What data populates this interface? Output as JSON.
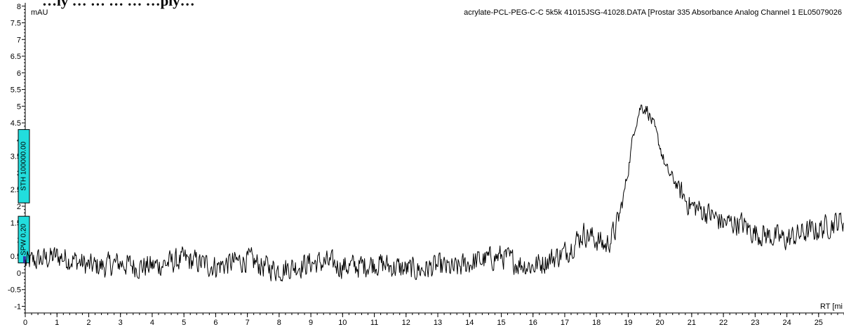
{
  "header": {
    "caption": "…ly … … … … …ply…"
  },
  "chart_data": {
    "type": "line",
    "title": "acrylate-PCL-PEG-C-C 5k5k 41015JSG-41028.DATA [Prostar 335 Absorbance Analog Channel 1 EL05079026",
    "ylabel": "mAU",
    "xlabel": "RT [mi",
    "xlim": [
      0,
      25.8
    ],
    "ylim": [
      -1.2,
      8.1
    ],
    "x_ticks": [
      "0",
      "1",
      "2",
      "3",
      "4",
      "5",
      "6",
      "7",
      "8",
      "9",
      "10",
      "11",
      "12",
      "13",
      "14",
      "15",
      "16",
      "17",
      "18",
      "19",
      "20",
      "21",
      "22",
      "23",
      "24",
      "25"
    ],
    "y_ticks": [
      "8",
      "7.5",
      "7",
      "6.5",
      "6",
      "5.5",
      "5",
      "4.5",
      "4",
      "3.5",
      "3",
      "2.5",
      "2",
      "1.5",
      "1",
      "0.5",
      "0",
      "-0.5",
      "-1"
    ],
    "grid": false,
    "line_color": "#000000",
    "markers": [
      {
        "label": "STH 100000.00",
        "color": "#22dddd",
        "y_range": [
          2.1,
          4.3
        ]
      },
      {
        "label": "SPW 0.20",
        "color": "#22dddd",
        "y_range": [
          0.3,
          1.7
        ]
      }
    ],
    "series": [
      {
        "x": [
          0,
          0.5,
          1,
          1.5,
          2,
          2.5,
          3,
          3.5,
          4,
          4.5,
          5,
          5.5,
          6,
          6.5,
          7,
          7.5,
          8,
          8.5,
          9,
          9.5,
          10,
          10.5,
          11,
          11.5,
          12,
          12.5,
          13,
          13.5,
          14,
          14.5,
          15,
          15.5,
          16,
          16.5,
          17,
          17.3,
          17.6,
          18,
          18.3,
          18.6,
          18.8,
          19,
          19.2,
          19.4,
          19.6,
          19.8,
          20,
          20.2,
          20.5,
          20.8,
          21,
          21.5,
          22,
          22.5,
          23,
          23.5,
          24,
          24.5,
          25,
          25.5,
          25.8
        ],
        "values": [
          0.3,
          0.4,
          0.5,
          0.4,
          0.2,
          0.2,
          0.3,
          0.2,
          0.2,
          0.3,
          0.4,
          0.3,
          0.2,
          0.3,
          0.4,
          0.2,
          0.1,
          0.2,
          0.3,
          0.3,
          0.2,
          0.2,
          0.3,
          0.2,
          0.1,
          0.1,
          0.2,
          0.1,
          0.3,
          0.4,
          0.5,
          0.3,
          0.2,
          0.4,
          0.6,
          0.9,
          1.2,
          1.0,
          0.8,
          1.3,
          2.0,
          3.1,
          4.4,
          5.0,
          4.9,
          4.4,
          3.8,
          3.1,
          2.7,
          2.2,
          2.0,
          1.8,
          1.5,
          1.5,
          1.2,
          1.1,
          1.0,
          1.2,
          1.3,
          1.5,
          1.6
        ]
      }
    ]
  }
}
